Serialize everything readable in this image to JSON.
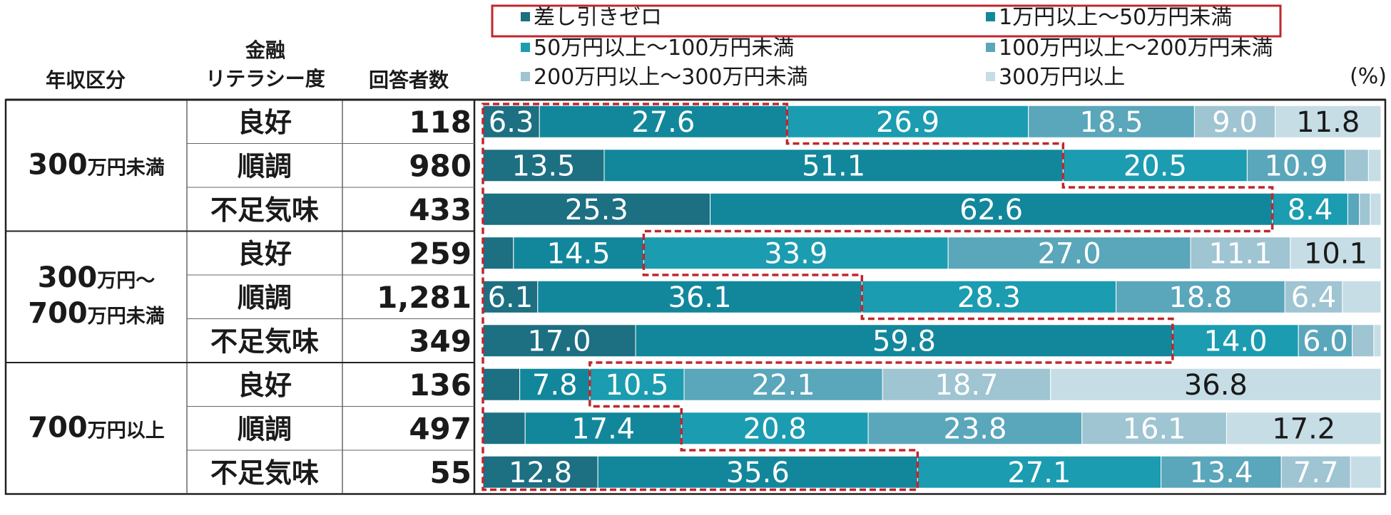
{
  "chart_data": {
    "type": "stacked-bar",
    "orientation": "horizontal",
    "unit": "(%)",
    "headers": {
      "income": "年収区分",
      "literacy_line1": "金融",
      "literacy_line2": "リテラシー度",
      "respondents": "回答者数"
    },
    "legend_placement": "top",
    "series": [
      {
        "name": "差し引きゼロ",
        "color": "#1d6f82"
      },
      {
        "name": "1万円以上～50万円未満",
        "color": "#12879b"
      },
      {
        "name": "50万円以上～100万円未満",
        "color": "#1b9cb0"
      },
      {
        "name": "100万円以上～200万円未満",
        "color": "#5aa6bb"
      },
      {
        "name": "200万円以上～300万円未満",
        "color": "#9fc4d2"
      },
      {
        "name": "300万円以上",
        "color": "#c6dde6"
      }
    ],
    "groups": [
      {
        "label_num1": "300",
        "label_unit1": "万円未満",
        "label_num2": "",
        "label_unit2": "",
        "rows": [
          {
            "literacy": "良好",
            "n": "118",
            "values": [
              6.3,
              27.6,
              26.9,
              18.5,
              9.0,
              11.8
            ],
            "labels": [
              "6.3",
              "27.6",
              "26.9",
              "18.5",
              "9.0",
              "11.8"
            ]
          },
          {
            "literacy": "順調",
            "n": "980",
            "values": [
              13.5,
              51.1,
              20.5,
              10.9,
              2.6,
              1.4
            ],
            "labels": [
              "13.5",
              "51.1",
              "20.5",
              "10.9",
              "",
              ""
            ]
          },
          {
            "literacy": "不足気味",
            "n": "433",
            "values": [
              25.3,
              62.6,
              8.4,
              1.3,
              1.2,
              1.2
            ],
            "labels": [
              "25.3",
              "62.6",
              "8.4",
              "",
              "",
              ""
            ]
          }
        ]
      },
      {
        "label_num1": "300",
        "label_unit1": "万円～",
        "label_num2": "700",
        "label_unit2": "万円未満",
        "rows": [
          {
            "literacy": "良好",
            "n": "259",
            "values": [
              3.4,
              14.5,
              33.9,
              27.0,
              11.1,
              10.1
            ],
            "labels": [
              "",
              "14.5",
              "33.9",
              "27.0",
              "11.1",
              "10.1"
            ]
          },
          {
            "literacy": "順調",
            "n": "1,281",
            "values": [
              6.1,
              36.1,
              28.3,
              18.8,
              6.4,
              4.3
            ],
            "labels": [
              "6.1",
              "36.1",
              "28.3",
              "18.8",
              "6.4",
              ""
            ]
          },
          {
            "literacy": "不足気味",
            "n": "349",
            "values": [
              17.0,
              59.8,
              14.0,
              6.0,
              2.4,
              0.8
            ],
            "labels": [
              "17.0",
              "59.8",
              "14.0",
              "6.0",
              "",
              ""
            ]
          }
        ]
      },
      {
        "label_num1": "700",
        "label_unit1": "万円以上",
        "label_num2": "",
        "label_unit2": "",
        "rows": [
          {
            "literacy": "良好",
            "n": "136",
            "values": [
              4.1,
              7.8,
              10.5,
              22.1,
              18.7,
              36.8
            ],
            "labels": [
              "",
              "7.8",
              "10.5",
              "22.1",
              "18.7",
              "36.8"
            ]
          },
          {
            "literacy": "順調",
            "n": "497",
            "values": [
              4.7,
              17.4,
              20.8,
              23.8,
              16.1,
              17.2
            ],
            "labels": [
              "",
              "17.4",
              "20.8",
              "23.8",
              "16.1",
              "17.2"
            ]
          },
          {
            "literacy": "不足気味",
            "n": "55",
            "values": [
              12.8,
              35.6,
              27.1,
              13.4,
              7.7,
              3.4
            ],
            "labels": [
              "12.8",
              "35.6",
              "27.1",
              "13.4",
              "7.7",
              ""
            ]
          }
        ]
      }
    ],
    "highlight_series": [
      0,
      1
    ]
  }
}
